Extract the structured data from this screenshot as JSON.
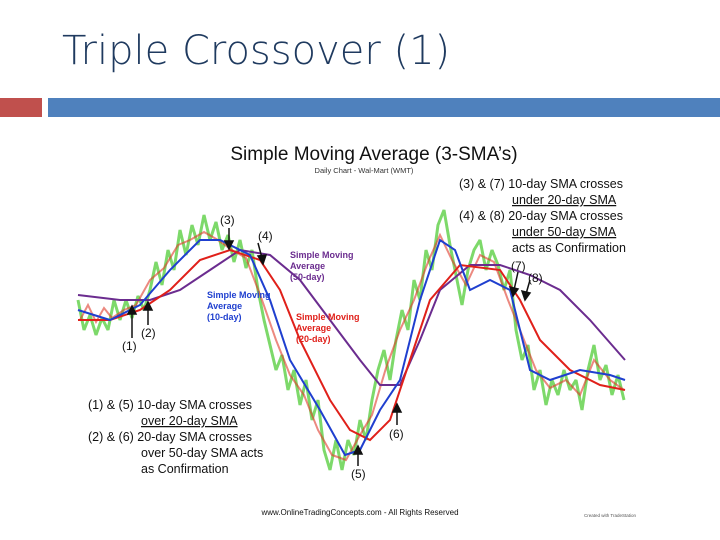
{
  "slide": {
    "title": "Triple Crossover (1)",
    "figure": {
      "title": "Simple Moving Average (3-SMA’s)",
      "subtitle": "Daily Chart - Wal-Mart (WMT)",
      "point_labels": [
        "(1)",
        "(2)",
        "(3)",
        "(4)",
        "(5)",
        "(6)",
        "(7)",
        "(8)"
      ],
      "line_labels": [
        [
          "Simple Moving",
          "Average",
          "(50-day)"
        ],
        [
          "Simple Moving",
          "Average",
          "(10-day)"
        ],
        [
          "Simple Moving",
          "Average",
          "(20-day)"
        ]
      ],
      "note_top_right": [
        "(3) & (7) 10-day SMA crosses",
        "under 20-day SMA",
        "(4) & (8) 20-day SMA crosses",
        "under 50-day SMA",
        "acts as Confirmation"
      ],
      "note_bottom_left": [
        "(1) & (5) 10-day SMA crosses",
        "over 20-day SMA",
        "(2) & (6) 20-day SMA crosses",
        "over 50-day SMA acts",
        "as Confirmation"
      ],
      "footer": "www.OnlineTradingConcepts.com - All Rights Reserved",
      "credit": "Created with TradeStation"
    }
  }
}
